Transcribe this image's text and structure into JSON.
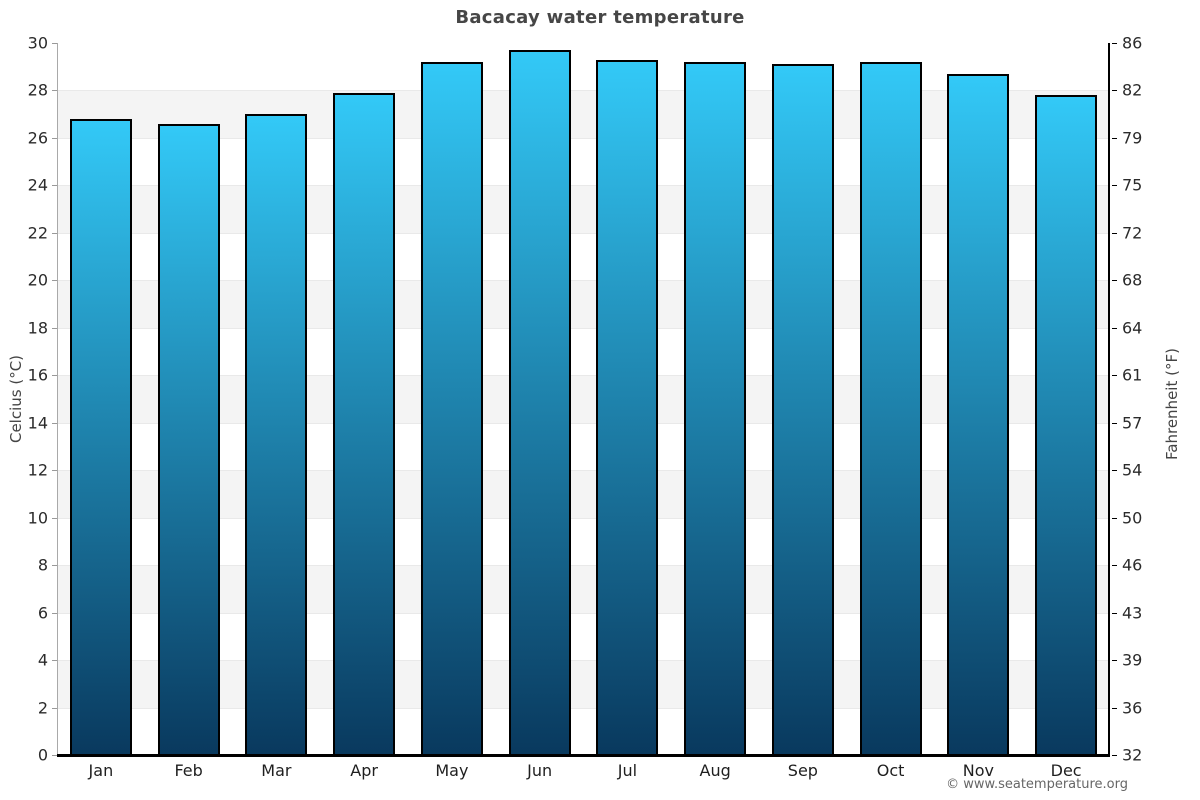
{
  "title": "Bacacay water temperature",
  "footer": "© www.seatemperature.org",
  "axes": {
    "left_label": "Celcius (°C)",
    "right_label": "Fahrenheit (°F)"
  },
  "chart_data": {
    "type": "bar",
    "title": "Bacacay water temperature",
    "categories": [
      "Jan",
      "Feb",
      "Mar",
      "Apr",
      "May",
      "Jun",
      "Jul",
      "Aug",
      "Sep",
      "Oct",
      "Nov",
      "Dec"
    ],
    "values": [
      26.8,
      26.6,
      27.0,
      27.9,
      29.2,
      29.7,
      29.3,
      29.2,
      29.1,
      29.2,
      28.7,
      27.8
    ],
    "unit": "°C",
    "ylabel_left": "Celcius (°C)",
    "ylabel_right": "Fahrenheit (°F)",
    "ylim": [
      0,
      30
    ],
    "band_step": 2,
    "y_ticks_celsius": [
      0,
      2,
      4,
      6,
      8,
      10,
      12,
      14,
      16,
      18,
      20,
      22,
      24,
      26,
      28,
      30
    ],
    "y_ticks_fahrenheit": [
      "32",
      "36",
      "39",
      "43",
      "46",
      "50",
      "54",
      "57",
      "61",
      "64",
      "68",
      "72",
      "75",
      "79",
      "82",
      "86"
    ],
    "legend": "none",
    "grid": "alternating-horizontal-bands",
    "colors": {
      "bar_top": "#33c9f7",
      "bar_bottom": "#09395e",
      "bar_border": "#000000",
      "band_gray": "#f4f4f4",
      "band_white": "#ffffff",
      "title": "#464646",
      "tick_text": "#2b2b2b",
      "axis_label": "#444444",
      "footer": "#666666"
    }
  }
}
